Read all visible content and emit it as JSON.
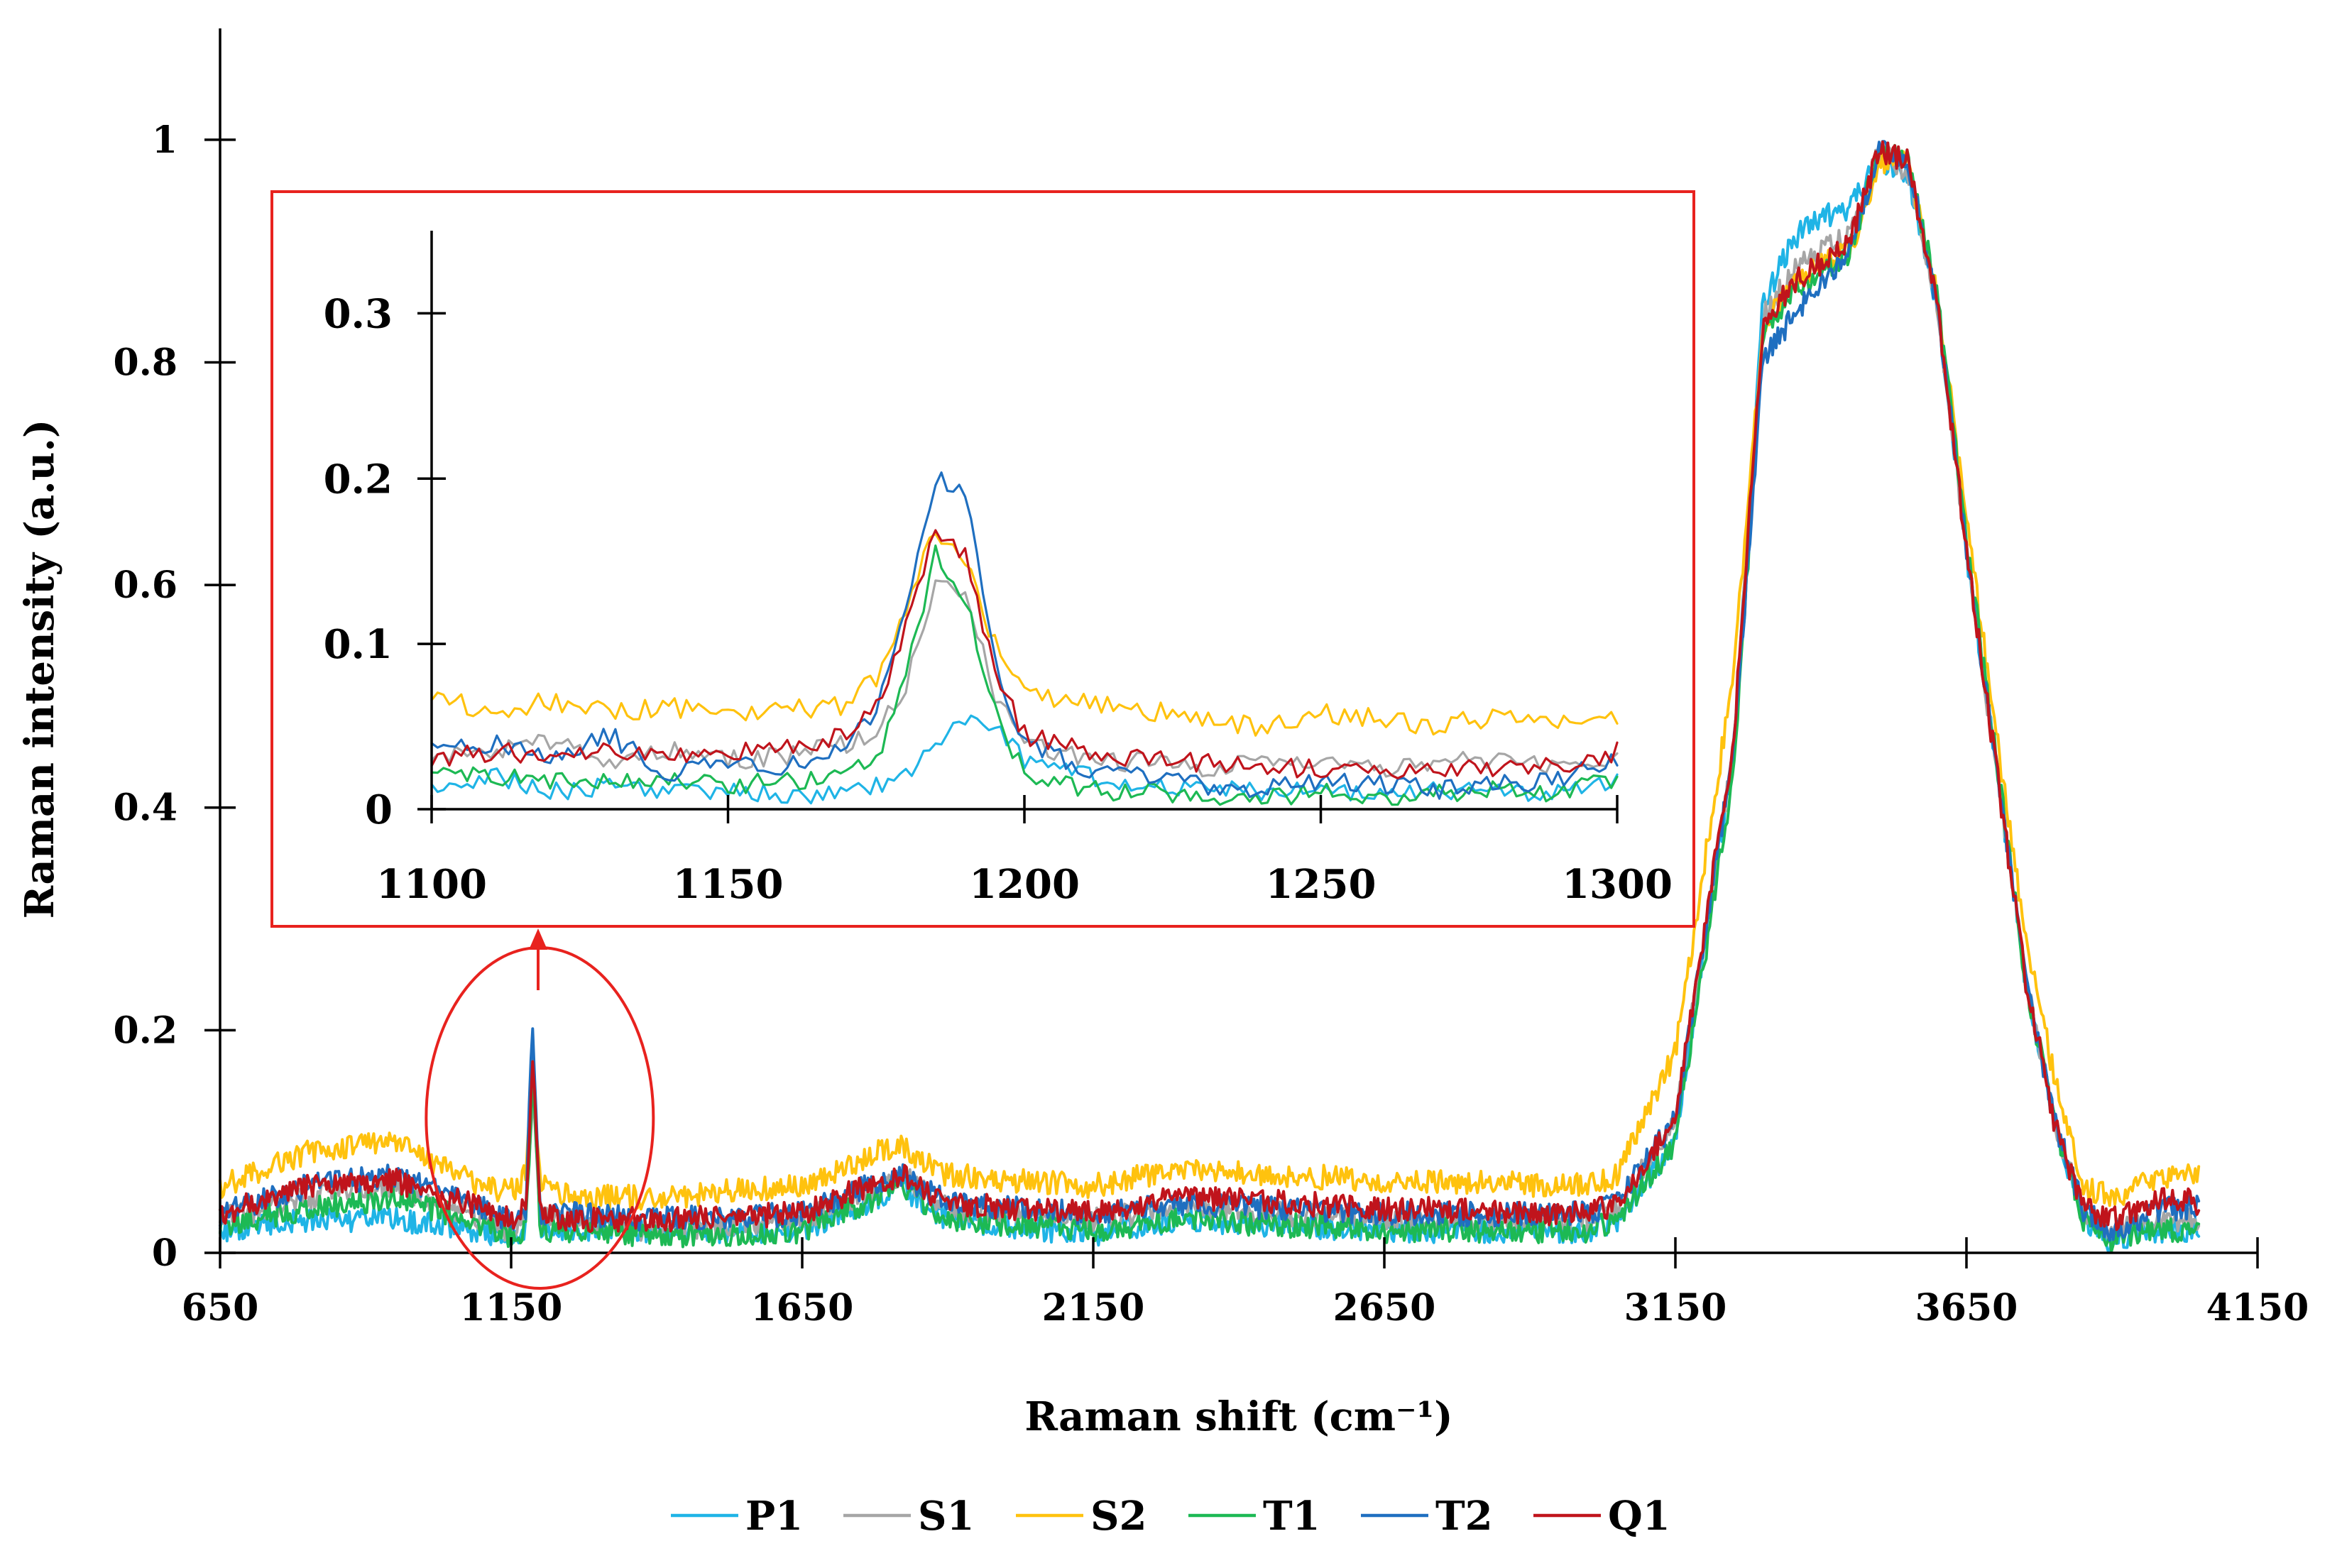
{
  "chart_data": [
    {
      "id": "main",
      "type": "line",
      "title": "",
      "xlabel": "Raman shift (cm⁻¹)",
      "ylabel": "Raman intensity (a.u.)",
      "xlim": [
        650,
        4150
      ],
      "ylim": [
        0,
        1.1
      ],
      "xticks": [
        650,
        1150,
        1650,
        2150,
        2650,
        3150,
        3650,
        4150
      ],
      "xtick_labels": [
        "650",
        "1150",
        "1650",
        "2150",
        "2650",
        "3150",
        "3650",
        "4150"
      ],
      "yticks": [
        0,
        0.2,
        0.4,
        0.6,
        0.8,
        1
      ],
      "ytick_labels": [
        "0",
        "0.2",
        "0.4",
        "0.6",
        "0.8",
        "1"
      ],
      "grid": false,
      "legend_position": "bottom",
      "series": [
        {
          "name": "P1",
          "color": "#1fb4e6",
          "x": [
            650,
            800,
            950,
            1100,
            1150,
            1175,
            1187,
            1200,
            1260,
            1400,
            1650,
            1780,
            1820,
            1900,
            2150,
            2300,
            2650,
            3000,
            3050,
            3150,
            3250,
            3300,
            3350,
            3400,
            3450,
            3500,
            3550,
            3600,
            3650,
            3700,
            3750,
            3800,
            3850,
            3900,
            3950,
            4000,
            4050
          ],
          "y": [
            0.02,
            0.03,
            0.03,
            0.02,
            0.01,
            0.02,
            0.18,
            0.02,
            0.02,
            0.02,
            0.02,
            0.05,
            0.06,
            0.03,
            0.015,
            0.03,
            0.02,
            0.02,
            0.03,
            0.1,
            0.45,
            0.85,
            0.91,
            0.93,
            0.94,
            0.98,
            0.97,
            0.85,
            0.63,
            0.44,
            0.25,
            0.12,
            0.03,
            0.01,
            0.02,
            0.02,
            0.02
          ]
        },
        {
          "name": "S1",
          "color": "#a6a6a6",
          "x": [
            650,
            800,
            950,
            1100,
            1150,
            1175,
            1187,
            1200,
            1260,
            1400,
            1650,
            1780,
            1820,
            1900,
            2150,
            2300,
            2650,
            3000,
            3050,
            3150,
            3250,
            3300,
            3350,
            3400,
            3450,
            3500,
            3550,
            3600,
            3650,
            3700,
            3750,
            3800,
            3850,
            3900,
            3950,
            4000,
            4050
          ],
          "y": [
            0.03,
            0.05,
            0.06,
            0.03,
            0.02,
            0.03,
            0.14,
            0.03,
            0.03,
            0.02,
            0.03,
            0.06,
            0.07,
            0.04,
            0.03,
            0.04,
            0.03,
            0.03,
            0.04,
            0.12,
            0.45,
            0.84,
            0.88,
            0.9,
            0.92,
            0.99,
            0.97,
            0.85,
            0.63,
            0.44,
            0.25,
            0.12,
            0.04,
            0.02,
            0.03,
            0.03,
            0.03
          ]
        },
        {
          "name": "S2",
          "color": "#ffc20e",
          "x": [
            650,
            800,
            950,
            1100,
            1150,
            1175,
            1187,
            1200,
            1260,
            1400,
            1650,
            1780,
            1820,
            1900,
            2150,
            2300,
            2650,
            3000,
            3050,
            3150,
            3250,
            3300,
            3350,
            3400,
            3450,
            3500,
            3550,
            3600,
            3650,
            3700,
            3750,
            3800,
            3850,
            3900,
            3950,
            4000,
            4050
          ],
          "y": [
            0.06,
            0.09,
            0.1,
            0.06,
            0.055,
            0.07,
            0.17,
            0.06,
            0.05,
            0.05,
            0.06,
            0.09,
            0.095,
            0.07,
            0.06,
            0.075,
            0.065,
            0.06,
            0.07,
            0.18,
            0.52,
            0.83,
            0.87,
            0.89,
            0.9,
            0.98,
            0.98,
            0.86,
            0.66,
            0.47,
            0.29,
            0.16,
            0.06,
            0.05,
            0.06,
            0.07,
            0.07
          ]
        },
        {
          "name": "T1",
          "color": "#1db954",
          "x": [
            650,
            800,
            950,
            1100,
            1150,
            1175,
            1187,
            1200,
            1260,
            1400,
            1650,
            1780,
            1820,
            1900,
            2150,
            2300,
            2650,
            3000,
            3050,
            3150,
            3250,
            3300,
            3350,
            3400,
            3450,
            3500,
            3550,
            3600,
            3650,
            3700,
            3750,
            3800,
            3850,
            3900,
            3950,
            4000,
            4050
          ],
          "y": [
            0.025,
            0.04,
            0.05,
            0.025,
            0.015,
            0.02,
            0.16,
            0.02,
            0.02,
            0.015,
            0.02,
            0.05,
            0.06,
            0.03,
            0.02,
            0.03,
            0.02,
            0.02,
            0.03,
            0.1,
            0.43,
            0.82,
            0.86,
            0.88,
            0.9,
            0.99,
            0.98,
            0.86,
            0.64,
            0.45,
            0.25,
            0.12,
            0.03,
            0.01,
            0.02,
            0.02,
            0.02
          ]
        },
        {
          "name": "T2",
          "color": "#1f6fc0",
          "x": [
            650,
            800,
            950,
            1100,
            1150,
            1175,
            1187,
            1200,
            1260,
            1400,
            1650,
            1780,
            1820,
            1900,
            2150,
            2300,
            2650,
            3000,
            3050,
            3150,
            3250,
            3300,
            3350,
            3400,
            3450,
            3500,
            3550,
            3600,
            3650,
            3700,
            3750,
            3800,
            3850,
            3900,
            3950,
            4000,
            4050
          ],
          "y": [
            0.035,
            0.06,
            0.07,
            0.04,
            0.03,
            0.04,
            0.205,
            0.035,
            0.035,
            0.03,
            0.035,
            0.065,
            0.07,
            0.045,
            0.035,
            0.045,
            0.035,
            0.035,
            0.045,
            0.12,
            0.45,
            0.8,
            0.84,
            0.87,
            0.9,
            0.99,
            0.98,
            0.85,
            0.63,
            0.44,
            0.25,
            0.12,
            0.04,
            0.02,
            0.03,
            0.04,
            0.04
          ]
        },
        {
          "name": "Q1",
          "color": "#c0141c",
          "x": [
            650,
            800,
            950,
            1100,
            1150,
            1175,
            1187,
            1200,
            1260,
            1400,
            1650,
            1780,
            1820,
            1900,
            2150,
            2300,
            2650,
            3000,
            3050,
            3150,
            3250,
            3300,
            3350,
            3400,
            3450,
            3500,
            3550,
            3600,
            3650,
            3700,
            3750,
            3800,
            3850,
            3900,
            3950,
            4000,
            4050
          ],
          "y": [
            0.035,
            0.06,
            0.065,
            0.04,
            0.03,
            0.04,
            0.17,
            0.035,
            0.03,
            0.03,
            0.035,
            0.065,
            0.07,
            0.045,
            0.035,
            0.05,
            0.04,
            0.035,
            0.045,
            0.12,
            0.46,
            0.83,
            0.87,
            0.89,
            0.91,
            0.99,
            0.98,
            0.85,
            0.63,
            0.44,
            0.25,
            0.12,
            0.04,
            0.03,
            0.04,
            0.05,
            0.045
          ]
        }
      ]
    },
    {
      "id": "inset",
      "type": "line",
      "title": "",
      "xlabel": "",
      "ylabel": "",
      "xlim": [
        1100,
        1300
      ],
      "ylim": [
        0,
        0.35
      ],
      "xticks": [
        1100,
        1150,
        1200,
        1250,
        1300
      ],
      "xtick_labels": [
        "1100",
        "1150",
        "1200",
        "1250",
        "1300"
      ],
      "yticks": [
        0,
        0.1,
        0.2,
        0.3
      ],
      "ytick_labels": [
        "0",
        "0.1",
        "0.2",
        "0.3"
      ],
      "grid": false,
      "series": [
        {
          "name": "P1",
          "color": "#1fb4e6",
          "x": [
            1100,
            1110,
            1120,
            1130,
            1140,
            1150,
            1160,
            1170,
            1175,
            1180,
            1185,
            1190,
            1195,
            1200,
            1210,
            1220,
            1230,
            1240,
            1250,
            1260,
            1270,
            1280,
            1290,
            1300
          ],
          "y": [
            0.015,
            0.02,
            0.01,
            0.015,
            0.01,
            0.012,
            0.008,
            0.01,
            0.015,
            0.02,
            0.04,
            0.055,
            0.05,
            0.03,
            0.02,
            0.015,
            0.012,
            0.01,
            0.012,
            0.01,
            0.012,
            0.01,
            0.012,
            0.015
          ]
        },
        {
          "name": "S1",
          "color": "#a6a6a6",
          "x": [
            1100,
            1110,
            1120,
            1130,
            1140,
            1150,
            1160,
            1170,
            1175,
            1180,
            1185,
            1190,
            1195,
            1200,
            1210,
            1220,
            1230,
            1240,
            1250,
            1260,
            1270,
            1280,
            1290,
            1300
          ],
          "y": [
            0.03,
            0.035,
            0.04,
            0.03,
            0.035,
            0.03,
            0.032,
            0.04,
            0.045,
            0.075,
            0.135,
            0.13,
            0.07,
            0.04,
            0.03,
            0.028,
            0.025,
            0.028,
            0.03,
            0.025,
            0.028,
            0.03,
            0.025,
            0.03
          ]
        },
        {
          "name": "S2",
          "color": "#ffc20e",
          "x": [
            1100,
            1110,
            1120,
            1130,
            1140,
            1150,
            1160,
            1170,
            1175,
            1180,
            1185,
            1190,
            1195,
            1200,
            1210,
            1220,
            1230,
            1240,
            1250,
            1260,
            1270,
            1280,
            1290,
            1300
          ],
          "y": [
            0.067,
            0.06,
            0.065,
            0.058,
            0.062,
            0.058,
            0.06,
            0.063,
            0.08,
            0.12,
            0.17,
            0.15,
            0.1,
            0.07,
            0.065,
            0.06,
            0.055,
            0.05,
            0.058,
            0.055,
            0.05,
            0.057,
            0.055,
            0.055
          ]
        },
        {
          "name": "T1",
          "color": "#1db954",
          "x": [
            1100,
            1110,
            1120,
            1130,
            1140,
            1150,
            1160,
            1170,
            1175,
            1180,
            1185,
            1190,
            1195,
            1200,
            1210,
            1220,
            1230,
            1240,
            1250,
            1260,
            1270,
            1280,
            1290,
            1300
          ],
          "y": [
            0.025,
            0.02,
            0.018,
            0.015,
            0.018,
            0.015,
            0.016,
            0.02,
            0.03,
            0.08,
            0.155,
            0.13,
            0.06,
            0.02,
            0.012,
            0.01,
            0.008,
            0.008,
            0.01,
            0.008,
            0.01,
            0.012,
            0.01,
            0.018
          ]
        },
        {
          "name": "T2",
          "color": "#1f6fc0",
          "x": [
            1100,
            1110,
            1120,
            1130,
            1140,
            1150,
            1160,
            1170,
            1175,
            1180,
            1185,
            1190,
            1195,
            1200,
            1210,
            1220,
            1230,
            1240,
            1250,
            1260,
            1270,
            1280,
            1290,
            1300
          ],
          "y": [
            0.035,
            0.04,
            0.03,
            0.045,
            0.02,
            0.03,
            0.025,
            0.04,
            0.06,
            0.12,
            0.2,
            0.19,
            0.09,
            0.04,
            0.025,
            0.02,
            0.015,
            0.012,
            0.018,
            0.015,
            0.012,
            0.015,
            0.018,
            0.03
          ]
        },
        {
          "name": "Q1",
          "color": "#c0141c",
          "x": [
            1100,
            1110,
            1120,
            1130,
            1140,
            1150,
            1160,
            1170,
            1175,
            1180,
            1185,
            1190,
            1195,
            1200,
            1210,
            1220,
            1230,
            1240,
            1250,
            1260,
            1270,
            1280,
            1290,
            1300
          ],
          "y": [
            0.03,
            0.035,
            0.032,
            0.035,
            0.03,
            0.035,
            0.038,
            0.045,
            0.06,
            0.11,
            0.17,
            0.155,
            0.085,
            0.045,
            0.035,
            0.03,
            0.028,
            0.025,
            0.025,
            0.022,
            0.025,
            0.025,
            0.025,
            0.035
          ]
        }
      ]
    }
  ],
  "annotation": {
    "highlight_color": "#e8221e"
  }
}
